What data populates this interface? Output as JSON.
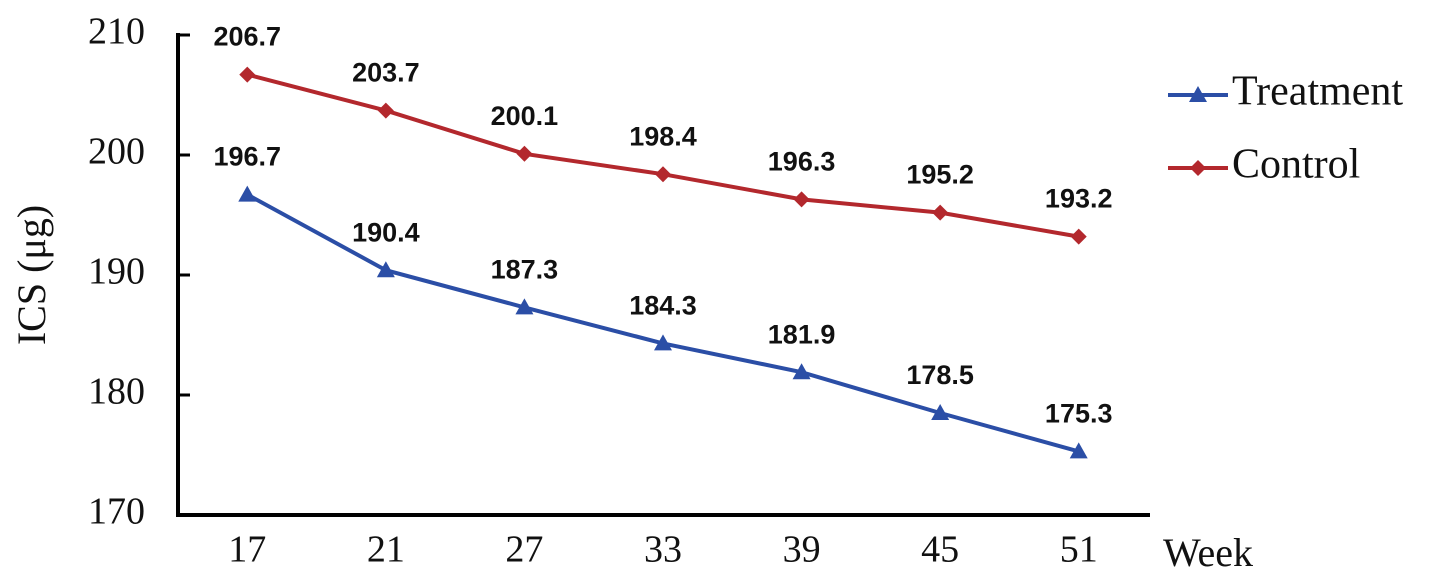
{
  "chart_data": {
    "type": "line",
    "y_label": "ICS (μg)",
    "x_label": "Week",
    "categories": [
      "17",
      "21",
      "27",
      "33",
      "39",
      "45",
      "51"
    ],
    "series": [
      {
        "name": "Treatment",
        "color": "#2b4ea6",
        "marker": "triangle",
        "values": [
          196.7,
          190.4,
          187.3,
          184.3,
          181.9,
          178.5,
          175.3
        ]
      },
      {
        "name": "Control",
        "color": "#b3282d",
        "marker": "diamond",
        "values": [
          206.7,
          203.7,
          200.1,
          198.4,
          196.3,
          195.2,
          193.2
        ]
      }
    ],
    "ylim": [
      170,
      210
    ],
    "yticks": [
      170,
      180,
      190,
      200,
      210
    ],
    "grid": false,
    "legend": "right"
  }
}
